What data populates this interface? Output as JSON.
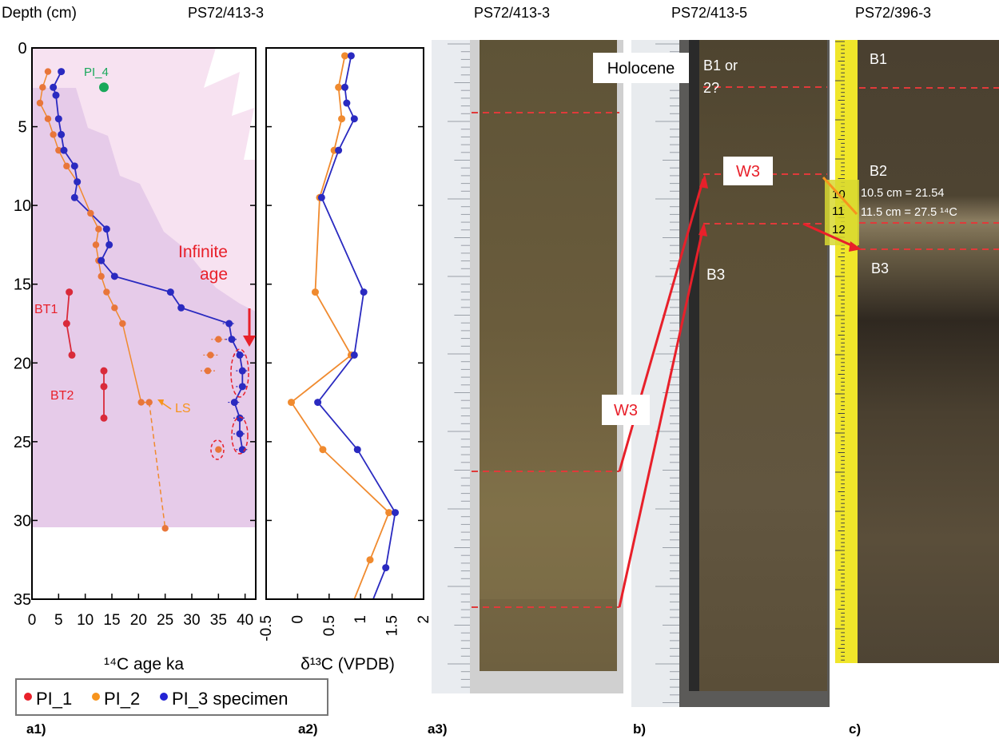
{
  "headers": {
    "depth_label": "Depth (cm)",
    "a1_core": "PS72/413-3",
    "a3_core": "PS72/413-3",
    "b_core": "PS72/413-5",
    "c_core": "PS72/396-3"
  },
  "panel_labels": {
    "a1": "a1)",
    "a2": "a2)",
    "a3": "a3)",
    "b": "b)",
    "c": "c)"
  },
  "legend": {
    "items": [
      {
        "label": "PI_1",
        "color": "#e8202a"
      },
      {
        "label": "PI_2",
        "color": "#f7941d"
      },
      {
        "label": "PI_3 specimen",
        "color": "#2323d4"
      }
    ]
  },
  "colors": {
    "pi1": "#d92a3a",
    "pi2": "#f08a2e",
    "pi3": "#2a2ac0",
    "pi2_a1": "#e8763a",
    "range_light": "#f5dcf0",
    "range_dark": "#dfc0e8",
    "annot_red": "#e8202a",
    "annot_green": "#19a85a",
    "dash_red": "#e03a3a"
  },
  "annotations": {
    "infinite_age_line1": "Infinite",
    "infinite_age_line2": "age",
    "pi4": "PI_4",
    "bt1": "BT1",
    "bt2": "BT2",
    "ls": "LS"
  },
  "photo_labels": {
    "holocene": "Holocene",
    "b1_or": "B1 or",
    "b1_2": "2?",
    "w3_b": "W3",
    "w3_mid": "W3",
    "b3_b": "B3",
    "b1_c": "B1",
    "b2_c": "B2",
    "b3_c": "B3",
    "age1": "10.5 cm = 21.54",
    "age2": "11.5 cm = 27.5 ¹⁴C",
    "n10": "10",
    "n11": "11",
    "n12": "12"
  },
  "chart_data": [
    {
      "type": "scatter",
      "panel": "a1",
      "xlabel": "¹⁴C age ka",
      "ylabel": "Depth (cm)",
      "xlim": [
        0,
        42
      ],
      "ylim": [
        0,
        35
      ],
      "y_inverted": true,
      "xticks": [
        0,
        5,
        10,
        15,
        20,
        25,
        30,
        35,
        40
      ],
      "yticks": [
        0,
        5,
        10,
        15,
        20,
        25,
        30,
        35
      ],
      "series": [
        {
          "name": "PI_3 specimen",
          "points": [
            [
              5.5,
              1.5
            ],
            [
              4,
              2.5
            ],
            [
              4.5,
              3
            ],
            [
              5,
              4.5
            ],
            [
              5.5,
              5.5
            ],
            [
              6,
              6.5
            ],
            [
              8,
              7.5
            ],
            [
              8.5,
              8.5
            ],
            [
              8,
              9.5
            ],
            [
              14,
              11.5
            ],
            [
              14.5,
              12.5
            ],
            [
              13,
              13.5
            ],
            [
              15.5,
              14.5
            ],
            [
              26,
              15.5
            ],
            [
              28,
              16.5
            ],
            [
              37,
              17.5
            ],
            [
              37.5,
              18.5
            ],
            [
              39,
              19.5
            ],
            [
              39.5,
              20.5
            ],
            [
              39.5,
              21.5
            ],
            [
              38,
              22.5
            ],
            [
              39,
              23.5
            ],
            [
              39,
              24.5
            ],
            [
              39.5,
              25.5
            ]
          ]
        },
        {
          "name": "PI_2",
          "points": [
            [
              3,
              1.5
            ],
            [
              2,
              2.5
            ],
            [
              1.5,
              3.5
            ],
            [
              3,
              4.5
            ],
            [
              4,
              5.5
            ],
            [
              5,
              6.5
            ],
            [
              6.5,
              7.5
            ],
            [
              8.5,
              8.5
            ],
            [
              11,
              10.5
            ],
            [
              12.5,
              11.5
            ],
            [
              12,
              12.5
            ],
            [
              12.5,
              13.5
            ],
            [
              13,
              14.5
            ],
            [
              14,
              15.5
            ],
            [
              15.5,
              16.5
            ],
            [
              17,
              17.5
            ],
            [
              20.5,
              22.5
            ],
            [
              22,
              22.5
            ],
            [
              35,
              25.5
            ],
            [
              25,
              30.5
            ]
          ],
          "offset_points": [
            [
              35,
              18.5
            ],
            [
              33.5,
              19.5
            ],
            [
              33,
              20.5
            ]
          ]
        },
        {
          "name": "PI_1",
          "points": [
            [
              7,
              15.5
            ],
            [
              6.5,
              17.5
            ],
            [
              7.5,
              19.5
            ],
            [
              13.5,
              20.5
            ],
            [
              13.5,
              21.5
            ],
            [
              13.5,
              23.5
            ]
          ]
        },
        {
          "name": "PI_4",
          "points": [
            [
              13.5,
              2.5
            ]
          ]
        }
      ]
    },
    {
      "type": "line",
      "panel": "a2",
      "xlabel": "δ¹³C (VPDB)",
      "xlim": [
        -0.5,
        2
      ],
      "ylim": [
        0,
        35
      ],
      "y_inverted": true,
      "xticks": [
        "-0.5",
        "0",
        "0.5",
        "1",
        "1.5",
        "2"
      ],
      "series": [
        {
          "name": "PI_3 specimen",
          "points": [
            [
              0.85,
              0.5
            ],
            [
              0.75,
              2.5
            ],
            [
              0.78,
              3.5
            ],
            [
              0.9,
              4.5
            ],
            [
              0.65,
              6.5
            ],
            [
              0.38,
              9.5
            ],
            [
              1.05,
              15.5
            ],
            [
              0.9,
              19.5
            ],
            [
              0.32,
              22.5
            ],
            [
              0.95,
              25.5
            ],
            [
              1.55,
              29.5
            ],
            [
              1.4,
              33
            ],
            [
              1.2,
              35
            ]
          ]
        },
        {
          "name": "PI_2",
          "points": [
            [
              0.75,
              0.5
            ],
            [
              0.65,
              2.5
            ],
            [
              0.7,
              4.5
            ],
            [
              0.58,
              6.5
            ],
            [
              0.35,
              9.5
            ],
            [
              0.28,
              15.5
            ],
            [
              0.85,
              19.5
            ],
            [
              -0.1,
              22.5
            ],
            [
              0.4,
              25.5
            ],
            [
              1.45,
              29.5
            ],
            [
              1.15,
              32.5
            ],
            [
              0.9,
              35
            ]
          ]
        }
      ]
    }
  ]
}
